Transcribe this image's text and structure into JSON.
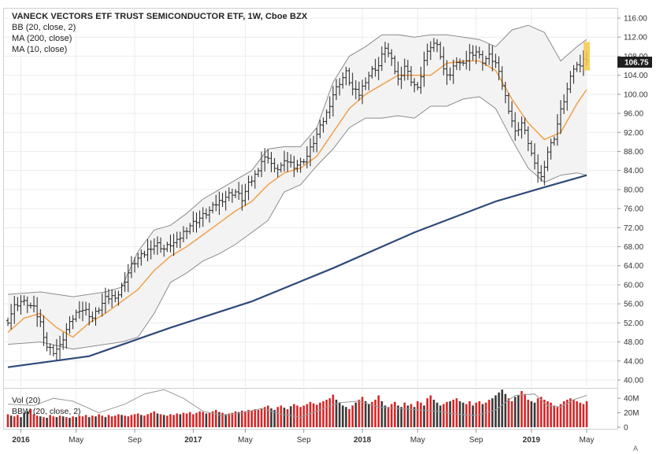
{
  "chart_data": {
    "type": "bar",
    "subtype": "ohlc",
    "title": "VANECK VECTORS ETF TRUST SEMICONDUCTOR ETF, 1W, Cboe BZX",
    "indicators": [
      "BB (20, close, 2)",
      "MA (200, close)",
      "MA (10, close)"
    ],
    "last_price": "106.75",
    "y_ticks": [
      "116.00",
      "112.00",
      "108.00",
      "104.00",
      "100.00",
      "96.00",
      "92.00",
      "88.00",
      "84.00",
      "80.00",
      "76.00",
      "72.00",
      "68.00",
      "64.00",
      "60.00",
      "56.00",
      "52.00",
      "48.00",
      "44.00",
      "40.00"
    ],
    "ylim": [
      40,
      116
    ],
    "x_ticks": [
      "2016",
      "May",
      "Sep",
      "2017",
      "May",
      "Sep",
      "2018",
      "May",
      "Sep",
      "2019",
      "May"
    ],
    "x_ticks_bold": [
      true,
      false,
      false,
      true,
      false,
      false,
      true,
      false,
      false,
      true,
      false
    ],
    "x_tick_weeks": [
      4,
      21,
      39,
      57,
      73,
      91,
      109,
      126,
      144,
      161,
      178
    ],
    "xlim": [
      0,
      178
    ],
    "close_series": [
      [
        0,
        52.5
      ],
      [
        2,
        55.5
      ],
      [
        4,
        56.5
      ],
      [
        6,
        56.0
      ],
      [
        8,
        55.0
      ],
      [
        10,
        52.0
      ],
      [
        12,
        47.0
      ],
      [
        14,
        46.0
      ],
      [
        16,
        47.0
      ],
      [
        18,
        50.5
      ],
      [
        20,
        53.0
      ],
      [
        22,
        55.0
      ],
      [
        24,
        54.5
      ],
      [
        26,
        53.0
      ],
      [
        28,
        55.0
      ],
      [
        30,
        57.0
      ],
      [
        32,
        57.5
      ],
      [
        34,
        58.0
      ],
      [
        36,
        61.0
      ],
      [
        38,
        64.0
      ],
      [
        40,
        65.5
      ],
      [
        42,
        66.5
      ],
      [
        44,
        68.0
      ],
      [
        46,
        68.5
      ],
      [
        48,
        67.5
      ],
      [
        50,
        68.5
      ],
      [
        52,
        69.0
      ],
      [
        54,
        71.0
      ],
      [
        56,
        72.5
      ],
      [
        58,
        73.5
      ],
      [
        60,
        74.5
      ],
      [
        62,
        75.5
      ],
      [
        64,
        77.0
      ],
      [
        66,
        78.0
      ],
      [
        68,
        79.0
      ],
      [
        70,
        79.5
      ],
      [
        72,
        78.0
      ],
      [
        74,
        81.0
      ],
      [
        76,
        83.0
      ],
      [
        78,
        86.0
      ],
      [
        80,
        87.0
      ],
      [
        82,
        84.0
      ],
      [
        84,
        85.0
      ],
      [
        86,
        86.0
      ],
      [
        88,
        85.0
      ],
      [
        90,
        85.5
      ],
      [
        92,
        87.0
      ],
      [
        94,
        90.0
      ],
      [
        96,
        93.0
      ],
      [
        98,
        96.0
      ],
      [
        100,
        100.0
      ],
      [
        102,
        102.5
      ],
      [
        104,
        104.5
      ],
      [
        106,
        101.0
      ],
      [
        108,
        100.0
      ],
      [
        110,
        103.0
      ],
      [
        112,
        105.0
      ],
      [
        114,
        106.0
      ],
      [
        116,
        110.0
      ],
      [
        118,
        107.0
      ],
      [
        120,
        103.0
      ],
      [
        122,
        106.0
      ],
      [
        124,
        103.0
      ],
      [
        126,
        101.0
      ],
      [
        128,
        107.0
      ],
      [
        130,
        110.0
      ],
      [
        132,
        111.0
      ],
      [
        134,
        105.0
      ],
      [
        136,
        104.0
      ],
      [
        138,
        107.0
      ],
      [
        140,
        106.0
      ],
      [
        142,
        108.5
      ],
      [
        144,
        109.0
      ],
      [
        146,
        107.0
      ],
      [
        148,
        108.0
      ],
      [
        150,
        106.5
      ],
      [
        152,
        102.0
      ],
      [
        154,
        97.0
      ],
      [
        156,
        92.0
      ],
      [
        158,
        94.0
      ],
      [
        160,
        90.0
      ],
      [
        162,
        85.0
      ],
      [
        164,
        82.5
      ],
      [
        166,
        88.0
      ],
      [
        168,
        91.0
      ],
      [
        170,
        96.5
      ],
      [
        172,
        101.0
      ],
      [
        174,
        105.5
      ],
      [
        176,
        106.5
      ],
      [
        177,
        107.5
      ],
      [
        178,
        106.75
      ]
    ],
    "ma200_series": [
      [
        0,
        42.7
      ],
      [
        25,
        45.0
      ],
      [
        50,
        51.0
      ],
      [
        75,
        56.5
      ],
      [
        100,
        63.5
      ],
      [
        125,
        71.0
      ],
      [
        150,
        77.5
      ],
      [
        165,
        80.5
      ],
      [
        178,
        83.0
      ]
    ],
    "ma10_series": [
      [
        0,
        50.0
      ],
      [
        5,
        53.0
      ],
      [
        10,
        54.0
      ],
      [
        15,
        51.0
      ],
      [
        20,
        49.0
      ],
      [
        25,
        52.0
      ],
      [
        30,
        54.0
      ],
      [
        35,
        56.5
      ],
      [
        40,
        59.0
      ],
      [
        45,
        63.0
      ],
      [
        50,
        66.0
      ],
      [
        55,
        68.0
      ],
      [
        60,
        70.5
      ],
      [
        65,
        73.0
      ],
      [
        70,
        75.5
      ],
      [
        75,
        77.5
      ],
      [
        80,
        81.0
      ],
      [
        85,
        83.5
      ],
      [
        90,
        84.5
      ],
      [
        95,
        87.0
      ],
      [
        100,
        92.0
      ],
      [
        105,
        97.0
      ],
      [
        110,
        100.0
      ],
      [
        115,
        102.0
      ],
      [
        120,
        104.0
      ],
      [
        125,
        104.0
      ],
      [
        130,
        104.0
      ],
      [
        135,
        106.5
      ],
      [
        140,
        107.0
      ],
      [
        145,
        107.0
      ],
      [
        150,
        105.0
      ],
      [
        155,
        99.0
      ],
      [
        160,
        94.0
      ],
      [
        165,
        90.5
      ],
      [
        170,
        92.0
      ],
      [
        175,
        98.0
      ],
      [
        178,
        101.0
      ]
    ],
    "bb_upper_series": [
      [
        0,
        58.0
      ],
      [
        10,
        58.5
      ],
      [
        20,
        57.5
      ],
      [
        30,
        58.5
      ],
      [
        35,
        59.5
      ],
      [
        40,
        67.0
      ],
      [
        45,
        71.5
      ],
      [
        50,
        72.5
      ],
      [
        55,
        75.0
      ],
      [
        60,
        78.0
      ],
      [
        65,
        80.0
      ],
      [
        70,
        82.0
      ],
      [
        75,
        84.0
      ],
      [
        80,
        88.5
      ],
      [
        85,
        89.0
      ],
      [
        90,
        89.0
      ],
      [
        95,
        93.0
      ],
      [
        100,
        102.5
      ],
      [
        105,
        108.0
      ],
      [
        110,
        110.0
      ],
      [
        115,
        112.5
      ],
      [
        120,
        112.5
      ],
      [
        125,
        112.0
      ],
      [
        130,
        112.5
      ],
      [
        135,
        112.5
      ],
      [
        140,
        112.0
      ],
      [
        145,
        111.5
      ],
      [
        150,
        110.0
      ],
      [
        155,
        113.5
      ],
      [
        160,
        114.5
      ],
      [
        165,
        113.0
      ],
      [
        170,
        107.0
      ],
      [
        175,
        110.0
      ],
      [
        178,
        111.5
      ]
    ],
    "bb_lower_series": [
      [
        0,
        47.5
      ],
      [
        10,
        48.0
      ],
      [
        20,
        46.5
      ],
      [
        30,
        47.5
      ],
      [
        35,
        48.0
      ],
      [
        40,
        49.0
      ],
      [
        45,
        54.0
      ],
      [
        50,
        60.5
      ],
      [
        55,
        62.5
      ],
      [
        60,
        65.0
      ],
      [
        65,
        66.5
      ],
      [
        70,
        68.5
      ],
      [
        75,
        71.0
      ],
      [
        80,
        73.5
      ],
      [
        85,
        79.5
      ],
      [
        90,
        81.0
      ],
      [
        95,
        85.0
      ],
      [
        100,
        88.5
      ],
      [
        105,
        93.0
      ],
      [
        110,
        95.0
      ],
      [
        115,
        95.0
      ],
      [
        120,
        95.5
      ],
      [
        125,
        95.0
      ],
      [
        130,
        97.5
      ],
      [
        135,
        97.5
      ],
      [
        140,
        99.0
      ],
      [
        145,
        99.5
      ],
      [
        150,
        97.0
      ],
      [
        155,
        90.5
      ],
      [
        160,
        84.5
      ],
      [
        165,
        81.5
      ],
      [
        170,
        83.0
      ],
      [
        175,
        83.5
      ],
      [
        178,
        83.0
      ]
    ],
    "volume_panel": {
      "labels": [
        "Vol (20)",
        "BBW (20, close, 2)"
      ],
      "y_ticks": [
        "40M",
        "20M",
        "0"
      ],
      "ylim_millions": [
        0,
        50
      ],
      "volume_millions": [
        18,
        16,
        15,
        17,
        14,
        20,
        22,
        25,
        18,
        16,
        15,
        14,
        13,
        17,
        15,
        14,
        16,
        15,
        14,
        13,
        15,
        14,
        16,
        15,
        17,
        14,
        16,
        15,
        18,
        16,
        14,
        17,
        15,
        16,
        18,
        17,
        16,
        15,
        17,
        18,
        19,
        17,
        16,
        18,
        20,
        22,
        19,
        18,
        17,
        16,
        18,
        17,
        19,
        18,
        20,
        19,
        21,
        18,
        20,
        22,
        21,
        19,
        20,
        22,
        24,
        21,
        20,
        18,
        19,
        20,
        22,
        21,
        23,
        22,
        24,
        23,
        25,
        24,
        26,
        28,
        30,
        26,
        24,
        28,
        30,
        27,
        25,
        29,
        32,
        30,
        28,
        30,
        32,
        35,
        33,
        31,
        34,
        36,
        38,
        40,
        45,
        38,
        34,
        30,
        28,
        25,
        30,
        34,
        38,
        42,
        36,
        32,
        35,
        38,
        44,
        36,
        30,
        28,
        32,
        35,
        30,
        28,
        34,
        30,
        32,
        28,
        36,
        34,
        30,
        40,
        44,
        38,
        34,
        30,
        32,
        35,
        36,
        38,
        40,
        36,
        34,
        32,
        36,
        30,
        34,
        36,
        32,
        34,
        38,
        40,
        44,
        48,
        52,
        46,
        40,
        36,
        42,
        44,
        50,
        46,
        38,
        36,
        34,
        40,
        42,
        38,
        36,
        34,
        30,
        28,
        32,
        36,
        38,
        40,
        38,
        36,
        34,
        32,
        36
      ],
      "volume_up": [
        true,
        false,
        true,
        true,
        false,
        false,
        false,
        true,
        true,
        true,
        false,
        true,
        false,
        true,
        true,
        false,
        true,
        false,
        true,
        false,
        true,
        false,
        true,
        true,
        true,
        false,
        true,
        false,
        true,
        true,
        false,
        true,
        true,
        true,
        true,
        false,
        true,
        true,
        true,
        true,
        true,
        false,
        true,
        true,
        true,
        true,
        false,
        true,
        false,
        true,
        true,
        true,
        true,
        false,
        true,
        true,
        true,
        true,
        true,
        true,
        true,
        false,
        true,
        true,
        true,
        false,
        true,
        false,
        true,
        true,
        true,
        false,
        true,
        true,
        true,
        true,
        true,
        true,
        true,
        true,
        true,
        false,
        false,
        true,
        true,
        false,
        true,
        false,
        true,
        true,
        true,
        true,
        true,
        true,
        true,
        true,
        true,
        true,
        true,
        true,
        true,
        false,
        false,
        false,
        false,
        true,
        true,
        false,
        true,
        true,
        false,
        false,
        true,
        true,
        true,
        false,
        false,
        true,
        true,
        true,
        false,
        false,
        true,
        false,
        true,
        false,
        true,
        true,
        false,
        true,
        true,
        false,
        false,
        false,
        true,
        true,
        false,
        true,
        true,
        false,
        false,
        true,
        true,
        false,
        true,
        true,
        false,
        true,
        true,
        false,
        false,
        false,
        false,
        false,
        true,
        true,
        false,
        false,
        true,
        true,
        true,
        false,
        false,
        true,
        true,
        true,
        true,
        true,
        true,
        true,
        true,
        true,
        true,
        true,
        true,
        true,
        true,
        true,
        true
      ],
      "bbw_series": [
        [
          0,
          32
        ],
        [
          8,
          30
        ],
        [
          14,
          40
        ],
        [
          20,
          36
        ],
        [
          28,
          20
        ],
        [
          36,
          32
        ],
        [
          42,
          46
        ],
        [
          48,
          52
        ],
        [
          54,
          40
        ],
        [
          60,
          22
        ],
        [
          66,
          16
        ],
        [
          72,
          20
        ],
        [
          78,
          26
        ],
        [
          84,
          18
        ],
        [
          90,
          14
        ],
        [
          96,
          24
        ],
        [
          102,
          34
        ],
        [
          108,
          36
        ],
        [
          114,
          28
        ],
        [
          120,
          26
        ],
        [
          126,
          24
        ],
        [
          132,
          22
        ],
        [
          138,
          18
        ],
        [
          144,
          16
        ],
        [
          150,
          24
        ],
        [
          156,
          44
        ],
        [
          162,
          46
        ],
        [
          166,
          30
        ],
        [
          170,
          28
        ],
        [
          174,
          38
        ],
        [
          178,
          44
        ]
      ]
    }
  },
  "scroll_button_label": "A"
}
